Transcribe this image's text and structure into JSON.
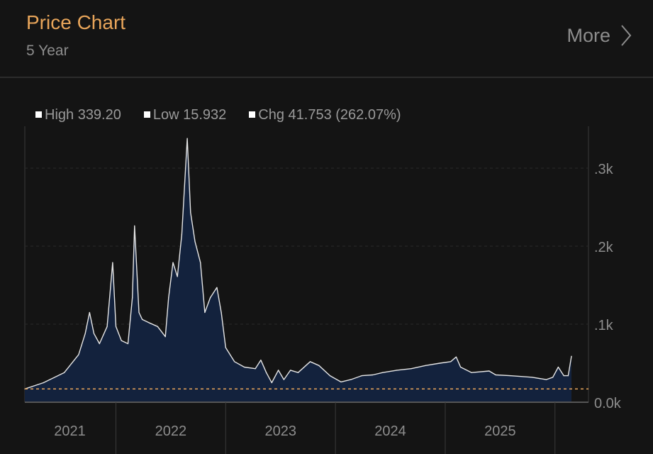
{
  "header": {
    "title": "Price Chart",
    "subtitle": "5 Year",
    "more_label": "More"
  },
  "colors": {
    "title": "#e8a55a",
    "area": "#13223d",
    "line": "#e6e6e6",
    "baseline": "#e8a55a"
  },
  "chart_data": {
    "type": "area",
    "title": "Price Chart",
    "legend": [
      {
        "label": "High 339.20"
      },
      {
        "label": "Low 15.932"
      },
      {
        "label": "Chg 41.753 (262.07%)"
      }
    ],
    "high": 339.2,
    "low": 15.932,
    "change": 41.753,
    "change_pct": 262.07,
    "baseline_value": 17,
    "xlim": [
      2021.17,
      2026.15
    ],
    "ylim": [
      0,
      350
    ],
    "x_dividers": [
      2022,
      2023,
      2024,
      2025,
      2026
    ],
    "x_ticks": [
      {
        "label": "2021",
        "at": 2021.58
      },
      {
        "label": "2022",
        "at": 2022.5
      },
      {
        "label": "2023",
        "at": 2023.5
      },
      {
        "label": "2024",
        "at": 2024.5
      },
      {
        "label": "2025",
        "at": 2025.5
      }
    ],
    "y_ticks": [
      {
        "label": "0.0k",
        "value": 0
      },
      {
        "label": ".1k",
        "value": 100
      },
      {
        "label": ".2k",
        "value": 200
      },
      {
        "label": ".3k",
        "value": 300
      }
    ],
    "points": [
      [
        2021.17,
        17
      ],
      [
        2021.34,
        25
      ],
      [
        2021.53,
        38
      ],
      [
        2021.66,
        61
      ],
      [
        2021.72,
        88
      ],
      [
        2021.76,
        115
      ],
      [
        2021.8,
        88
      ],
      [
        2021.85,
        75
      ],
      [
        2021.92,
        97
      ],
      [
        2021.97,
        179
      ],
      [
        2022.0,
        97
      ],
      [
        2022.05,
        79
      ],
      [
        2022.11,
        75
      ],
      [
        2022.15,
        134
      ],
      [
        2022.17,
        226
      ],
      [
        2022.21,
        115
      ],
      [
        2022.24,
        106
      ],
      [
        2022.3,
        102
      ],
      [
        2022.38,
        97
      ],
      [
        2022.45,
        84
      ],
      [
        2022.48,
        134
      ],
      [
        2022.52,
        179
      ],
      [
        2022.56,
        161
      ],
      [
        2022.6,
        215
      ],
      [
        2022.65,
        338
      ],
      [
        2022.68,
        243
      ],
      [
        2022.72,
        206
      ],
      [
        2022.77,
        179
      ],
      [
        2022.81,
        115
      ],
      [
        2022.86,
        134
      ],
      [
        2022.92,
        147
      ],
      [
        2022.96,
        115
      ],
      [
        2023.0,
        70
      ],
      [
        2023.08,
        52
      ],
      [
        2023.17,
        45
      ],
      [
        2023.27,
        43
      ],
      [
        2023.32,
        54
      ],
      [
        2023.37,
        38
      ],
      [
        2023.42,
        25
      ],
      [
        2023.48,
        41
      ],
      [
        2023.53,
        29
      ],
      [
        2023.59,
        41
      ],
      [
        2023.66,
        38
      ],
      [
        2023.77,
        52
      ],
      [
        2023.85,
        47
      ],
      [
        2023.95,
        34
      ],
      [
        2024.05,
        26
      ],
      [
        2024.14,
        29
      ],
      [
        2024.24,
        34
      ],
      [
        2024.34,
        35
      ],
      [
        2024.43,
        38
      ],
      [
        2024.56,
        41
      ],
      [
        2024.69,
        43
      ],
      [
        2024.82,
        47
      ],
      [
        2024.95,
        50
      ],
      [
        2025.05,
        52
      ],
      [
        2025.1,
        58
      ],
      [
        2025.14,
        45
      ],
      [
        2025.24,
        38
      ],
      [
        2025.4,
        40
      ],
      [
        2025.46,
        35
      ],
      [
        2025.59,
        34
      ],
      [
        2025.79,
        32
      ],
      [
        2025.92,
        29
      ],
      [
        2025.98,
        32
      ],
      [
        2026.03,
        45
      ],
      [
        2026.08,
        34
      ],
      [
        2026.12,
        34
      ],
      [
        2026.15,
        59
      ]
    ]
  }
}
